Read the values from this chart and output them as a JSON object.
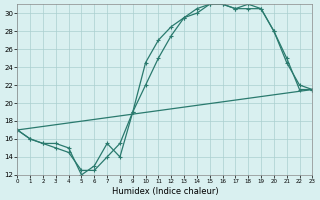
{
  "xlabel": "Humidex (Indice chaleur)",
  "background_color": "#d9f0f0",
  "line_color": "#2a7a6e",
  "grid_color": "#aacfcf",
  "xlim": [
    0,
    23
  ],
  "ylim": [
    12,
    31
  ],
  "xticks": [
    0,
    1,
    2,
    3,
    4,
    5,
    6,
    7,
    8,
    9,
    10,
    11,
    12,
    13,
    14,
    15,
    16,
    17,
    18,
    19,
    20,
    21,
    22,
    23
  ],
  "yticks": [
    12,
    14,
    16,
    18,
    20,
    22,
    24,
    26,
    28,
    30
  ],
  "line1_x": [
    0,
    1,
    2,
    3,
    4,
    5,
    6,
    7,
    8,
    9,
    10,
    11,
    12,
    13,
    14,
    15,
    16,
    17,
    18,
    19,
    20,
    21,
    22,
    23
  ],
  "line1_y": [
    17,
    16,
    15.5,
    15,
    14.5,
    12.5,
    12.5,
    14,
    15.5,
    19,
    24.5,
    27,
    28.5,
    29.5,
    30,
    31,
    31,
    30.5,
    30.5,
    30.5,
    28,
    24.5,
    22,
    21.5
  ],
  "line2_x": [
    0,
    1,
    2,
    3,
    4,
    5,
    6,
    7,
    8,
    9,
    10,
    11,
    12,
    13,
    14,
    15,
    16,
    17,
    18,
    19,
    20,
    21,
    22,
    23
  ],
  "line2_y": [
    17,
    16,
    15.5,
    15.5,
    15,
    12,
    13,
    15.5,
    14,
    19,
    22,
    25,
    27.5,
    29.5,
    30.5,
    31,
    31,
    30.5,
    31,
    30.5,
    28,
    25,
    21.5,
    21.5
  ],
  "line3_x": [
    0,
    23
  ],
  "line3_y": [
    17,
    21.5
  ]
}
